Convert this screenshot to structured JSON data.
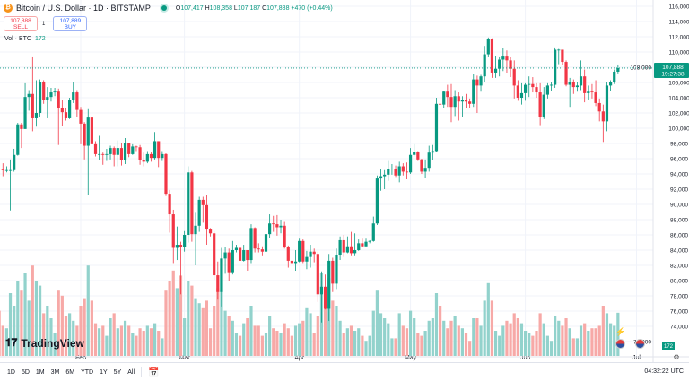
{
  "header": {
    "title": "Bitcoin / U.S. Dollar · 1D · BITSTAMP",
    "open_label": "O",
    "open": "107,417",
    "high_label": "H",
    "high": "108,358",
    "low_label": "L",
    "low": "107,187",
    "close_label": "C",
    "close": "107,888",
    "change": "+470 (+0.44%)"
  },
  "trade": {
    "sell_price": "107,888",
    "sell_label": "SELL",
    "spread": "1",
    "buy_price": "107,889",
    "buy_label": "BUY"
  },
  "volume_legend": {
    "label": "Vol · BTC",
    "value": "172"
  },
  "logo": "TradingView",
  "price_tag": {
    "price": "107,888",
    "countdown": "19:27:38"
  },
  "volume_tag": "172",
  "timeframes": [
    "1D",
    "5D",
    "1M",
    "3M",
    "6M",
    "YTD",
    "1Y",
    "5Y",
    "All"
  ],
  "clock": "04:32:22 UTC",
  "colors": {
    "up": "#089981",
    "down": "#f23645",
    "up_volume": "#92d2cc",
    "down_volume": "#f7a9a7"
  },
  "icons": [
    "bitcoin-icon",
    "live-dot-icon",
    "calendar-range-icon",
    "settings-icon",
    "us-flag-event-icon",
    "lightning-icon"
  ],
  "chart_data": {
    "type": "candlestick",
    "title": "Bitcoin / U.S. Dollar · 1D · BITSTAMP",
    "ylim": [
      71000,
      117000
    ],
    "y_ticks": [
      72000,
      74000,
      76000,
      78000,
      80000,
      82000,
      84000,
      86000,
      88000,
      90000,
      92000,
      94000,
      96000,
      98000,
      100000,
      102000,
      104000,
      106000,
      108000,
      110000,
      112000,
      114000,
      116000
    ],
    "x_ticks": [
      {
        "label": "Feb",
        "index": 22
      },
      {
        "label": "Mar",
        "index": 50
      },
      {
        "label": "Apr",
        "index": 81
      },
      {
        "label": "May",
        "index": 111
      },
      {
        "label": "Jun",
        "index": 142
      },
      {
        "label": "Jul",
        "index": 172
      }
    ],
    "grid": true,
    "first_open": 94700,
    "close": [
      94600,
      94500,
      94500,
      94500,
      96500,
      100500,
      99900,
      104100,
      104500,
      101300,
      102000,
      106100,
      103700,
      104100,
      104700,
      104800,
      102600,
      102100,
      101300,
      103700,
      104700,
      102400,
      100600,
      97700,
      101400,
      97900,
      96600,
      96600,
      96500,
      96600,
      97400,
      96500,
      97400,
      95800,
      98000,
      96600,
      97600,
      97500,
      95800,
      95600,
      96600,
      96100,
      98300,
      96100,
      96600,
      91400,
      88700,
      84300,
      84700,
      84400,
      86000,
      94200,
      86100,
      87200,
      90600,
      89900,
      86700,
      86200,
      80700,
      78500,
      82900,
      83700,
      81100,
      84000,
      84300,
      82600,
      84000,
      82700,
      86900,
      84200,
      84100,
      83800,
      86100,
      87500,
      87400,
      87000,
      87200,
      84400,
      82600,
      82300,
      82500,
      85200,
      82500,
      83100,
      83800,
      83500,
      78200,
      79200,
      76300,
      82600,
      79600,
      83400,
      85300,
      83700,
      84500,
      83600,
      84000,
      84900,
      84500,
      85100,
      85200,
      87500,
      93400,
      93700,
      93900,
      94700,
      94700,
      93800,
      95000,
      94300,
      94200,
      96500,
      96900,
      95900,
      94300,
      94800,
      96800,
      97000,
      103200,
      103100,
      104800,
      104100,
      102800,
      104200,
      103500,
      103700,
      103500,
      103200,
      106400,
      105600,
      106800,
      109700,
      111700,
      107300,
      107800,
      109000,
      109400,
      108900,
      107800,
      105600,
      104000,
      104600,
      105700,
      105800,
      105400,
      104700,
      101500,
      104400,
      105600,
      105700,
      110300,
      110300,
      108700,
      105700,
      106100,
      105400,
      105600,
      106800,
      104600,
      104800,
      104700,
      103300,
      102200,
      100900,
      105600,
      106100,
      107417,
      107888
    ],
    "high": [
      95800,
      95400,
      95000,
      95900,
      97300,
      100700,
      100700,
      105900,
      105000,
      109300,
      106300,
      106400,
      106300,
      105400,
      105300,
      105300,
      105200,
      103700,
      102700,
      104000,
      106000,
      105000,
      102800,
      100800,
      102500,
      101700,
      98300,
      99000,
      96800,
      97300,
      97700,
      97600,
      98400,
      98000,
      98700,
      97200,
      97900,
      97700,
      97800,
      96800,
      97000,
      96900,
      99500,
      98200,
      97000,
      96700,
      91900,
      89300,
      87100,
      85100,
      86500,
      95000,
      94400,
      88900,
      91000,
      91000,
      91200,
      86900,
      86500,
      82500,
      84300,
      84400,
      84200,
      85200,
      84700,
      84900,
      84700,
      84000,
      87400,
      87000,
      84900,
      84500,
      86400,
      88700,
      88500,
      88600,
      88000,
      87700,
      84600,
      83900,
      84000,
      85500,
      85400,
      83900,
      84700,
      84200,
      83800,
      81200,
      80800,
      83500,
      83000,
      84200,
      85800,
      86000,
      85800,
      86400,
      86200,
      85400,
      85500,
      85500,
      85300,
      88400,
      93800,
      94600,
      94500,
      95700,
      95300,
      95100,
      95600,
      95400,
      95500,
      97400,
      97900,
      97000,
      96000,
      95900,
      97700,
      97800,
      104000,
      104000,
      104900,
      105700,
      105800,
      105000,
      104700,
      104200,
      104500,
      103900,
      107100,
      106900,
      107000,
      110800,
      111900,
      111800,
      109500,
      109300,
      110500,
      110200,
      109300,
      108900,
      106300,
      105900,
      105900,
      106800,
      106700,
      105900,
      105900,
      105400,
      105900,
      106100,
      110600,
      110400,
      110300,
      108900,
      106600,
      106400,
      106000,
      108900,
      107700,
      105600,
      105800,
      106300,
      103900,
      103100,
      106000,
      106300,
      107700,
      108358
    ],
    "low": [
      92300,
      93700,
      94200,
      89200,
      94300,
      96400,
      97400,
      99900,
      102300,
      99600,
      100200,
      101500,
      103200,
      101300,
      103500,
      104200,
      97800,
      100300,
      101000,
      101200,
      103300,
      101500,
      97900,
      95900,
      91200,
      97600,
      96300,
      95800,
      95200,
      95700,
      95900,
      95000,
      95000,
      95100,
      95300,
      96200,
      96500,
      97000,
      95200,
      95000,
      95400,
      95600,
      95900,
      94900,
      95700,
      91100,
      86300,
      82300,
      82700,
      78200,
      83800,
      85000,
      85100,
      82000,
      86400,
      87600,
      84700,
      85800,
      80100,
      77500,
      76600,
      80900,
      79900,
      80800,
      83700,
      82100,
      82500,
      81300,
      82300,
      83700,
      83700,
      83200,
      83600,
      85600,
      86400,
      85900,
      86200,
      84200,
      81700,
      81600,
      81300,
      82400,
      82300,
      81500,
      81700,
      82400,
      77200,
      74500,
      76200,
      74700,
      78500,
      78900,
      82700,
      83100,
      83600,
      83200,
      83200,
      83900,
      84400,
      84700,
      84900,
      85100,
      87300,
      91800,
      92000,
      93100,
      93900,
      93600,
      92900,
      93800,
      93300,
      94000,
      96300,
      95700,
      94000,
      93500,
      94300,
      95800,
      96900,
      101500,
      102700,
      102800,
      100800,
      101600,
      101000,
      101500,
      102600,
      102600,
      102800,
      102000,
      104800,
      106000,
      109300,
      106600,
      106600,
      106800,
      107500,
      107300,
      106700,
      103900,
      103600,
      103100,
      103600,
      104100,
      104700,
      104000,
      100400,
      101200,
      103900,
      104900,
      105300,
      108400,
      108300,
      105500,
      102800,
      104500,
      104800,
      105000,
      103400,
      103700,
      103900,
      102900,
      100900,
      98200,
      99600,
      104900,
      105800,
      107187
    ],
    "volume": [
      180,
      120,
      110,
      250,
      200,
      300,
      260,
      330,
      220,
      360,
      300,
      280,
      170,
      200,
      150,
      90,
      260,
      240,
      160,
      170,
      140,
      120,
      200,
      230,
      360,
      220,
      130,
      110,
      120,
      80,
      150,
      170,
      110,
      120,
      140,
      120,
      90,
      80,
      110,
      100,
      120,
      110,
      130,
      100,
      70,
      260,
      300,
      340,
      270,
      320,
      150,
      300,
      280,
      230,
      210,
      190,
      220,
      110,
      200,
      270,
      260,
      180,
      160,
      140,
      90,
      80,
      130,
      150,
      200,
      120,
      120,
      80,
      90,
      160,
      110,
      100,
      90,
      130,
      110,
      80,
      120,
      130,
      140,
      190,
      170,
      90,
      160,
      330,
      260,
      310,
      220,
      200,
      140,
      90,
      110,
      120,
      100,
      110,
      80,
      60,
      80,
      180,
      260,
      170,
      150,
      130,
      70,
      70,
      170,
      120,
      110,
      180,
      150,
      90,
      80,
      100,
      140,
      150,
      250,
      200,
      140,
      110,
      140,
      160,
      120,
      110,
      90,
      60,
      150,
      150,
      120,
      220,
      290,
      220,
      100,
      80,
      120,
      140,
      130,
      170,
      150,
      130,
      100,
      90,
      80,
      100,
      170,
      130,
      80,
      60,
      160,
      140,
      120,
      150,
      110,
      70,
      70,
      120,
      130,
      100,
      110,
      110,
      120,
      200,
      170,
      130,
      120,
      172
    ]
  }
}
